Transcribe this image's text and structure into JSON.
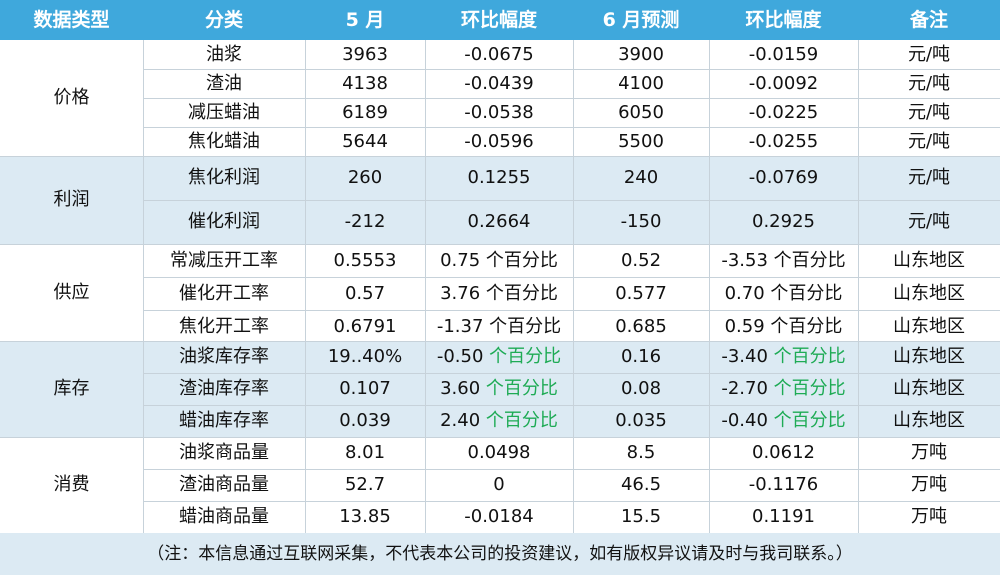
{
  "header": {
    "columns": [
      "数据类型",
      "分类",
      "5 月",
      "环比幅度",
      "6 月预测",
      "环比幅度",
      "备注"
    ]
  },
  "groups": [
    {
      "category": "价格",
      "rows": [
        {
          "name": "油浆",
          "may": "3963",
          "may_change": "-0.0675",
          "may_change_suffix": "",
          "jun": "3900",
          "jun_change": "-0.0159",
          "jun_change_suffix": "",
          "note": "元/吨"
        },
        {
          "name": "渣油",
          "may": "4138",
          "may_change": "-0.0439",
          "may_change_suffix": "",
          "jun": "4100",
          "jun_change": "-0.0092",
          "jun_change_suffix": "",
          "note": "元/吨"
        },
        {
          "name": "减压蜡油",
          "may": "6189",
          "may_change": "-0.0538",
          "may_change_suffix": "",
          "jun": "6050",
          "jun_change": "-0.0225",
          "jun_change_suffix": "",
          "note": "元/吨"
        },
        {
          "name": "焦化蜡油",
          "may": "5644",
          "may_change": "-0.0596",
          "may_change_suffix": "",
          "jun": "5500",
          "jun_change": "-0.0255",
          "jun_change_suffix": "",
          "note": "元/吨"
        }
      ]
    },
    {
      "category": "利润",
      "rows": [
        {
          "name": "焦化利润",
          "may": "260",
          "may_change": "0.1255",
          "may_change_suffix": "",
          "jun": "240",
          "jun_change": "-0.0769",
          "jun_change_suffix": "",
          "note": "元/吨"
        },
        {
          "name": "催化利润",
          "may": "-212",
          "may_change": "0.2664",
          "may_change_suffix": "",
          "jun": "-150",
          "jun_change": "0.2925",
          "jun_change_suffix": "",
          "note": "元/吨"
        }
      ]
    },
    {
      "category": "供应",
      "rows": [
        {
          "name": "常减压开工率",
          "may": "0.5553",
          "may_change": "0.75",
          "may_change_suffix": " 个百分比",
          "jun": "0.52",
          "jun_change": "-3.53",
          "jun_change_suffix": " 个百分比",
          "note": "山东地区"
        },
        {
          "name": "催化开工率",
          "may": "0.57",
          "may_change": "3.76",
          "may_change_suffix": " 个百分比",
          "jun": "0.577",
          "jun_change": "0.70",
          "jun_change_suffix": " 个百分比",
          "note": "山东地区"
        },
        {
          "name": "焦化开工率",
          "may": "0.6791",
          "may_change": "-1.37",
          "may_change_suffix": " 个百分比",
          "jun": "0.685",
          "jun_change": "0.59",
          "jun_change_suffix": " 个百分比",
          "note": "山东地区"
        }
      ]
    },
    {
      "category": "库存",
      "rows": [
        {
          "name": "油浆库存率",
          "may": "19..40%",
          "may_change": "-0.50",
          "may_change_suffix": " 个百分比",
          "jun": "0.16",
          "jun_change": "-3.40",
          "jun_change_suffix": " 个百分比",
          "note": "山东地区"
        },
        {
          "name": "渣油库存率",
          "may": "0.107",
          "may_change": "3.60",
          "may_change_suffix": " 个百分比",
          "jun": "0.08",
          "jun_change": "-2.70",
          "jun_change_suffix": " 个百分比",
          "note": "山东地区"
        },
        {
          "name": "蜡油库存率",
          "may": "0.039",
          "may_change": "2.40",
          "may_change_suffix": " 个百分比",
          "jun": "0.035",
          "jun_change": "-0.40",
          "jun_change_suffix": " 个百分比",
          "note": "山东地区"
        }
      ]
    },
    {
      "category": "消费",
      "rows": [
        {
          "name": "油浆商品量",
          "may": "8.01",
          "may_change": "0.0498",
          "may_change_suffix": "",
          "jun": "8.5",
          "jun_change": "0.0612",
          "jun_change_suffix": "",
          "note": "万吨"
        },
        {
          "name": "渣油商品量",
          "may": "52.7",
          "may_change": "0",
          "may_change_suffix": "",
          "jun": "46.5",
          "jun_change": "-0.1176",
          "jun_change_suffix": "",
          "note": "万吨"
        },
        {
          "name": "蜡油商品量",
          "may": "13.85",
          "may_change": "-0.0184",
          "may_change_suffix": "",
          "jun": "15.5",
          "jun_change": "0.1191",
          "jun_change_suffix": "",
          "note": "万吨"
        }
      ]
    }
  ],
  "footer": {
    "disclaimer": "（注：本信息通过互联网采集，不代表本公司的投资建议，如有版权异议请及时与我司联系。）"
  },
  "colors": {
    "header_bg": "#3fa8dc",
    "band_blue": "#dceaf3",
    "suffix_green": "#1eab55"
  }
}
